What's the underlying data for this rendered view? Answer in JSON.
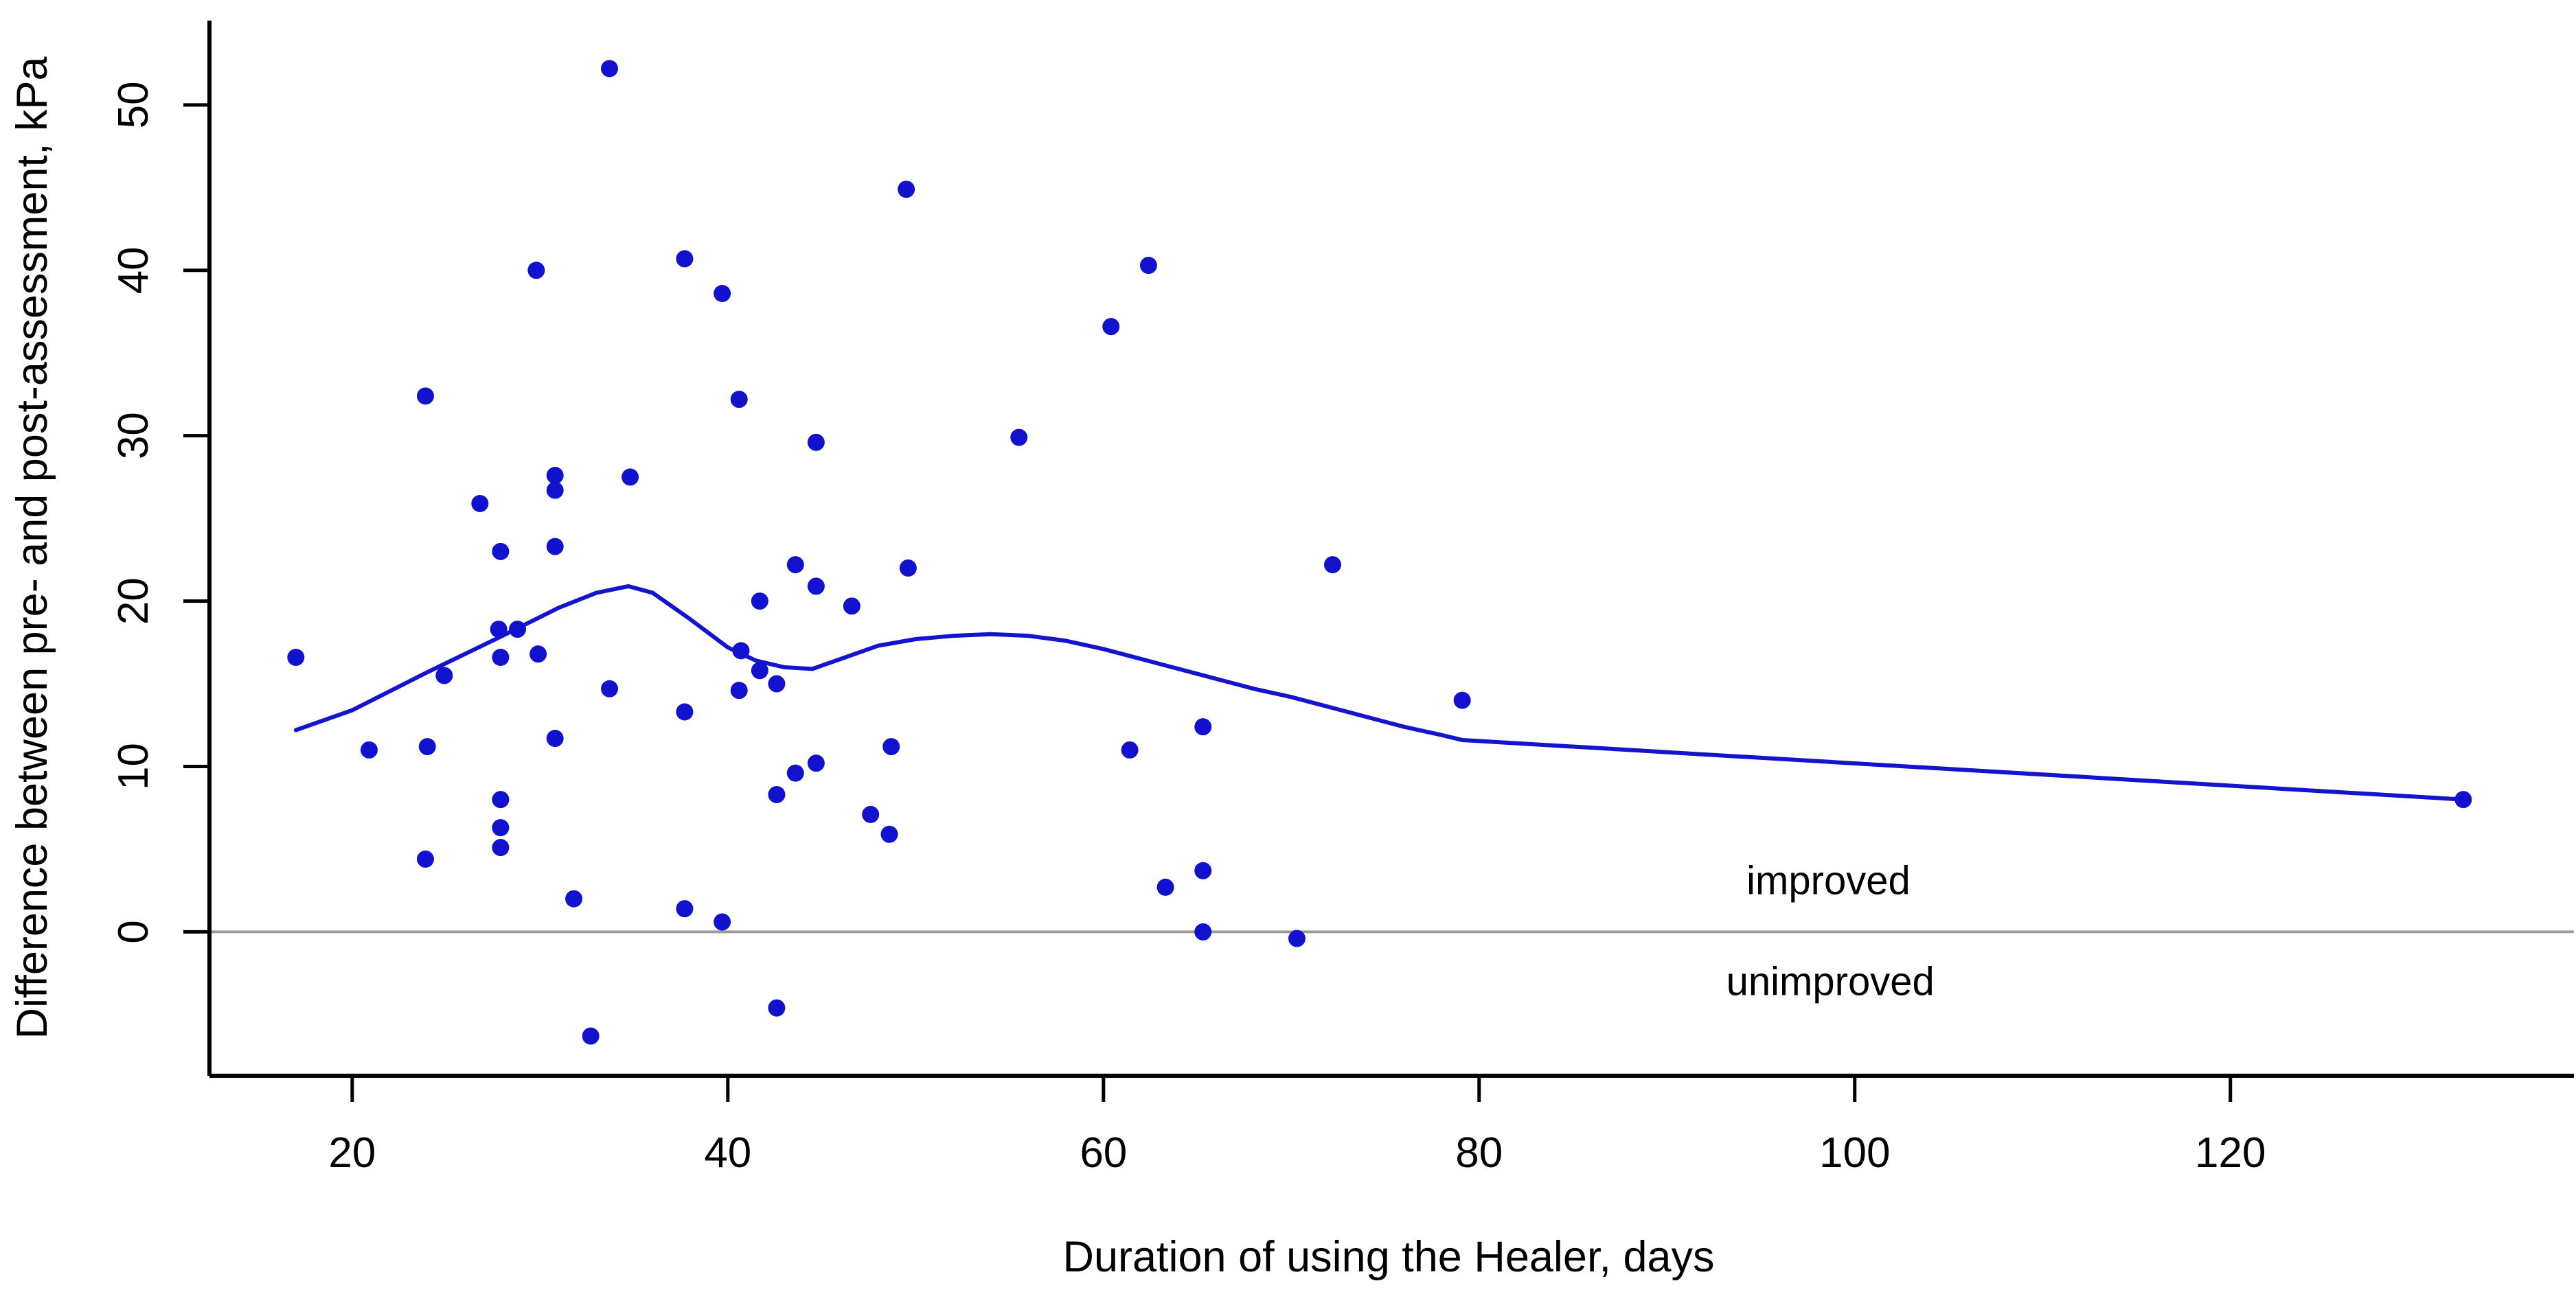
{
  "chart_data": {
    "type": "scatter",
    "title": "",
    "xlabel": "Duration of using the Healer, days",
    "ylabel": "Difference between pre- and post-assessment, kPa",
    "x_ticks": [
      20,
      40,
      60,
      80,
      100,
      120
    ],
    "y_ticks": [
      0,
      10,
      20,
      30,
      40,
      50
    ],
    "xlim": [
      12.4,
      138.0
    ],
    "ylim": [
      -8.7,
      55.1
    ],
    "grid": false,
    "legend": "none",
    "zero_reference_line": 0,
    "colors": {
      "points": "#1111ce",
      "loess_line": "#1414ce",
      "zero_line": "#9c9c9c",
      "axis": "#000000",
      "text": "#000000"
    },
    "annotations": [
      {
        "text": "improved",
        "x": 98.6,
        "y": 3.1
      },
      {
        "text": "unimproved",
        "x": 98.7,
        "y": -3.0
      }
    ],
    "points": [
      [
        17.0,
        16.6
      ],
      [
        20.9,
        11.0
      ],
      [
        23.9,
        32.4
      ],
      [
        23.9,
        4.4
      ],
      [
        24.0,
        11.2
      ],
      [
        24.9,
        15.5
      ],
      [
        26.8,
        25.9
      ],
      [
        27.8,
        18.3
      ],
      [
        27.9,
        23.0
      ],
      [
        27.9,
        16.6
      ],
      [
        27.9,
        8.0
      ],
      [
        27.9,
        6.3
      ],
      [
        27.9,
        5.1
      ],
      [
        28.8,
        18.3
      ],
      [
        29.8,
        40.0
      ],
      [
        29.9,
        16.8
      ],
      [
        30.8,
        27.6
      ],
      [
        30.8,
        26.7
      ],
      [
        30.8,
        23.3
      ],
      [
        30.8,
        11.7
      ],
      [
        31.8,
        2.0
      ],
      [
        32.7,
        -6.3
      ],
      [
        33.7,
        14.7
      ],
      [
        33.7,
        52.2
      ],
      [
        34.8,
        27.5
      ],
      [
        37.7,
        40.7
      ],
      [
        37.7,
        13.3
      ],
      [
        37.7,
        1.4
      ],
      [
        39.7,
        38.6
      ],
      [
        39.7,
        0.6
      ],
      [
        40.6,
        32.2
      ],
      [
        40.6,
        14.6
      ],
      [
        40.7,
        17.0
      ],
      [
        41.7,
        20.0
      ],
      [
        41.7,
        15.8
      ],
      [
        42.6,
        15.0
      ],
      [
        42.6,
        8.3
      ],
      [
        42.6,
        -4.6
      ],
      [
        43.6,
        22.2
      ],
      [
        43.6,
        9.6
      ],
      [
        44.7,
        29.6
      ],
      [
        44.7,
        20.9
      ],
      [
        44.7,
        10.2
      ],
      [
        46.6,
        19.7
      ],
      [
        47.6,
        7.1
      ],
      [
        48.6,
        5.9
      ],
      [
        48.7,
        11.2
      ],
      [
        49.5,
        44.9
      ],
      [
        49.6,
        22.0
      ],
      [
        55.5,
        29.9
      ],
      [
        60.4,
        36.6
      ],
      [
        61.4,
        11.0
      ],
      [
        62.4,
        40.3
      ],
      [
        63.3,
        2.7
      ],
      [
        65.3,
        12.4
      ],
      [
        65.3,
        3.7
      ],
      [
        65.3,
        0.0
      ],
      [
        70.3,
        -0.4
      ],
      [
        72.2,
        22.2
      ],
      [
        79.1,
        14.0
      ],
      [
        132.4,
        8.0
      ]
    ],
    "loess_curve": [
      [
        17.0,
        12.2
      ],
      [
        20.0,
        13.4
      ],
      [
        24.0,
        15.7
      ],
      [
        28.0,
        17.9
      ],
      [
        31.0,
        19.6
      ],
      [
        33.0,
        20.5
      ],
      [
        34.7,
        20.9
      ],
      [
        36.0,
        20.5
      ],
      [
        38.0,
        18.9
      ],
      [
        40.0,
        17.2
      ],
      [
        41.5,
        16.4
      ],
      [
        43.0,
        16.0
      ],
      [
        44.5,
        15.9
      ],
      [
        46.0,
        16.5
      ],
      [
        48.0,
        17.3
      ],
      [
        50.0,
        17.7
      ],
      [
        52.0,
        17.9
      ],
      [
        54.0,
        18.0
      ],
      [
        56.0,
        17.9
      ],
      [
        58.0,
        17.6
      ],
      [
        60.0,
        17.1
      ],
      [
        62.0,
        16.5
      ],
      [
        64.0,
        15.9
      ],
      [
        66.0,
        15.3
      ],
      [
        68.0,
        14.7
      ],
      [
        70.0,
        14.2
      ],
      [
        72.0,
        13.6
      ],
      [
        74.0,
        13.0
      ],
      [
        76.0,
        12.4
      ],
      [
        78.0,
        11.9
      ],
      [
        79.1,
        11.6
      ],
      [
        132.4,
        8.0
      ]
    ]
  }
}
